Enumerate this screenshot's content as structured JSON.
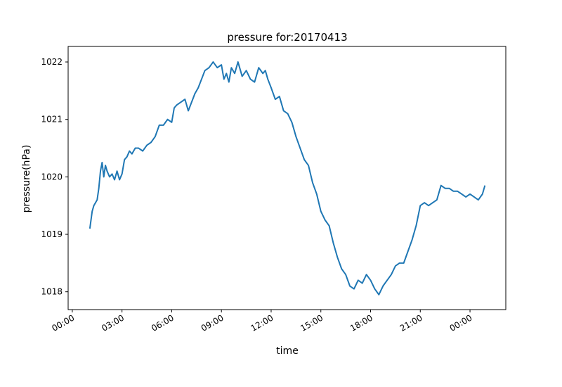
{
  "chart_data": {
    "type": "line",
    "title": "pressure for:20170413",
    "xlabel": "time",
    "ylabel": "pressure(hPa)",
    "x": [
      1.06,
      1.2,
      1.3,
      1.5,
      1.6,
      1.7,
      1.8,
      1.9,
      2.0,
      2.1,
      2.25,
      2.4,
      2.55,
      2.7,
      2.85,
      3.0,
      3.15,
      3.3,
      3.45,
      3.6,
      3.8,
      4.0,
      4.25,
      4.5,
      4.75,
      5.0,
      5.25,
      5.5,
      5.75,
      6.0,
      6.15,
      6.3,
      6.55,
      6.8,
      7.0,
      7.2,
      7.4,
      7.6,
      7.8,
      8.0,
      8.25,
      8.5,
      8.75,
      9.0,
      9.15,
      9.3,
      9.45,
      9.6,
      9.8,
      10.0,
      10.25,
      10.5,
      10.75,
      11.0,
      11.25,
      11.5,
      11.65,
      11.8,
      12.0,
      12.25,
      12.5,
      12.75,
      13.0,
      13.25,
      13.5,
      13.75,
      14.0,
      14.25,
      14.5,
      14.75,
      15.0,
      15.25,
      15.5,
      15.75,
      16.0,
      16.25,
      16.5,
      16.75,
      17.0,
      17.25,
      17.5,
      17.75,
      18.0,
      18.25,
      18.5,
      18.75,
      19.0,
      19.25,
      19.5,
      19.75,
      20.0,
      20.25,
      20.5,
      20.75,
      21.0,
      21.25,
      21.5,
      21.75,
      22.0,
      22.25,
      22.5,
      22.75,
      23.0,
      23.25,
      23.5,
      23.75,
      24.0,
      24.25,
      24.5,
      24.75,
      24.9
    ],
    "values": [
      1019.1,
      1019.4,
      1019.5,
      1019.6,
      1019.8,
      1020.1,
      1020.25,
      1020.0,
      1020.2,
      1020.1,
      1020.0,
      1020.05,
      1019.95,
      1020.1,
      1019.95,
      1020.05,
      1020.3,
      1020.35,
      1020.45,
      1020.4,
      1020.5,
      1020.5,
      1020.45,
      1020.55,
      1020.6,
      1020.7,
      1020.9,
      1020.9,
      1021.0,
      1020.95,
      1021.2,
      1021.25,
      1021.3,
      1021.35,
      1021.15,
      1021.3,
      1021.45,
      1021.55,
      1021.7,
      1021.85,
      1021.9,
      1022.0,
      1021.9,
      1021.95,
      1021.7,
      1021.8,
      1021.65,
      1021.9,
      1021.8,
      1022.0,
      1021.75,
      1021.85,
      1021.7,
      1021.65,
      1021.9,
      1021.8,
      1021.85,
      1021.7,
      1021.55,
      1021.35,
      1021.4,
      1021.15,
      1021.1,
      1020.95,
      1020.7,
      1020.5,
      1020.3,
      1020.2,
      1019.9,
      1019.7,
      1019.4,
      1019.25,
      1019.15,
      1018.85,
      1018.6,
      1018.4,
      1018.3,
      1018.1,
      1018.05,
      1018.2,
      1018.15,
      1018.3,
      1018.2,
      1018.05,
      1017.95,
      1018.1,
      1018.2,
      1018.3,
      1018.45,
      1018.5,
      1018.5,
      1018.7,
      1018.9,
      1019.15,
      1019.5,
      1019.55,
      1019.5,
      1019.55,
      1019.6,
      1019.85,
      1019.8,
      1019.8,
      1019.75,
      1019.75,
      1019.7,
      1019.65,
      1019.7,
      1019.65,
      1019.6,
      1019.7,
      1019.85
    ],
    "color": "#1f77b4",
    "xlim": [
      -0.25,
      26.16
    ],
    "xticks": [
      {
        "value": 0,
        "label": "00:00"
      },
      {
        "value": 3,
        "label": "03:00"
      },
      {
        "value": 6,
        "label": "06:00"
      },
      {
        "value": 9,
        "label": "09:00"
      },
      {
        "value": 12,
        "label": "12:00"
      },
      {
        "value": 15,
        "label": "15:00"
      },
      {
        "value": 18,
        "label": "18:00"
      },
      {
        "value": 21,
        "label": "21:00"
      },
      {
        "value": 24,
        "label": "00:00"
      }
    ],
    "ylim": [
      1017.69,
      1022.27
    ],
    "yticks": [
      1018,
      1019,
      1020,
      1021,
      1022
    ]
  }
}
